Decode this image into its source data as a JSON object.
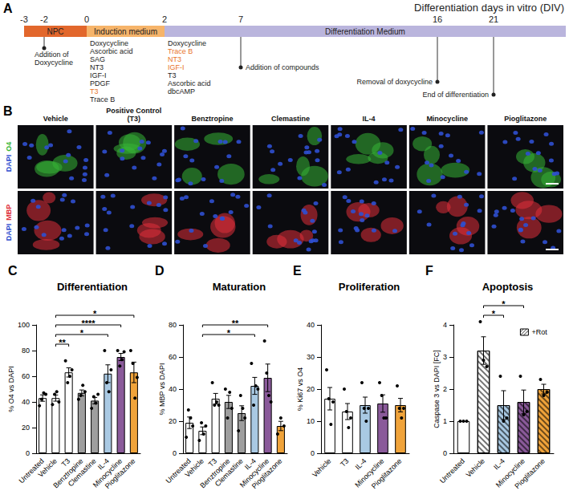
{
  "panel_a": {
    "letter": "A",
    "header": "Differentiation days in vitro (DIV)",
    "ticks": [
      -3,
      -2,
      0,
      2,
      7,
      16,
      21
    ],
    "segments": [
      {
        "label": "NPC",
        "from": -3,
        "color": "#e2672c"
      },
      {
        "label": "Induction medium",
        "from": 0,
        "color": "#f6b46a"
      },
      {
        "label": "Differentiation Medium",
        "from": 2,
        "color": "#bab5dd"
      }
    ],
    "media": [
      {
        "day": 0,
        "items": [
          "Doxycycline",
          "Ascorbic acid",
          "SAG",
          "NT3",
          "IGF-I",
          "PDGF",
          "T3",
          "Trace B"
        ],
        "highlighted": [
          "T3"
        ]
      },
      {
        "day": 2,
        "items": [
          "Doxycycline",
          "Trace B",
          "NT3",
          "IGF-I",
          "T3",
          "Ascorbic acid",
          "dbcAMP"
        ],
        "highlighted": [
          "Trace B",
          "NT3",
          "IGF-I"
        ]
      }
    ],
    "events": [
      {
        "day": -2,
        "text": "Addition of Doxycycline"
      },
      {
        "day": 7,
        "text": "Addition of compounds"
      },
      {
        "day": 16,
        "text": "Removal of doxycycline"
      },
      {
        "day": 21,
        "text": "End of differentiation"
      }
    ]
  },
  "panel_b": {
    "letter": "B",
    "columns": [
      "Vehicle",
      "Positive Control (T3)",
      "Benztropine",
      "Clemastine",
      "IL-4",
      "Minocycline",
      "Pioglitazone"
    ],
    "rows": [
      {
        "stains": [
          "DAPI",
          "O4"
        ],
        "colors": [
          "#2f4fd0",
          "#36b536"
        ]
      },
      {
        "stains": [
          "DAPI",
          "MBP"
        ],
        "colors": [
          "#2f4fd0",
          "#e0303a"
        ]
      }
    ]
  },
  "chart_data": [
    {
      "panel": "C",
      "type": "bar",
      "title": "Differentiation",
      "y_label": "% O4 vs DAPI",
      "categories": [
        "Untreated",
        "Vehicle",
        "T3",
        "Benztropine",
        "Clemastine",
        "IL-4",
        "Minocycline",
        "Pioglitazone"
      ],
      "values": [
        43,
        43,
        63,
        47,
        41,
        62,
        75,
        63
      ],
      "errors": [
        2.5,
        2.4,
        3.6,
        2.3,
        2.5,
        6.9,
        2.8,
        8.0
      ],
      "points": [
        [
          37,
          42,
          47,
          46
        ],
        [
          38,
          46,
          48,
          40
        ],
        [
          72,
          55,
          60,
          65
        ],
        [
          42,
          45,
          53,
          48
        ],
        [
          35,
          44,
          39,
          46
        ],
        [
          80,
          55,
          48,
          65
        ],
        [
          80,
          68,
          73,
          79
        ],
        [
          80,
          70,
          43,
          59
        ]
      ],
      "colors": [
        "#ffffff",
        "#ffffff",
        "#ffffff",
        "#9e9e9e",
        "#9e9e9e",
        "#a9c9e3",
        "#8a5a9a",
        "#f0a33a"
      ],
      "ylim": [
        0,
        100
      ],
      "yticks": [
        0,
        20,
        40,
        60,
        80,
        100
      ],
      "significance": [
        {
          "from": "Vehicle",
          "to": "T3",
          "label": "**"
        },
        {
          "from": "Vehicle",
          "to": "IL-4",
          "label": "*"
        },
        {
          "from": "Vehicle",
          "to": "Minocycline",
          "label": "****"
        },
        {
          "from": "Vehicle",
          "to": "Pioglitazone",
          "label": "*"
        }
      ]
    },
    {
      "panel": "D",
      "type": "bar",
      "title": "Maturation",
      "y_label": "% MBP vs DAPI",
      "categories": [
        "Untreated",
        "Vehicle",
        "T3",
        "Benztropine",
        "Clemastine",
        "IL-4",
        "Minocycline",
        "Pioglitazone"
      ],
      "values": [
        19,
        14,
        34,
        32,
        25,
        42,
        47,
        17
      ],
      "errors": [
        3.6,
        2.4,
        3.3,
        4.1,
        4.6,
        5.3,
        8.6,
        2.9
      ],
      "points": [
        [
          10,
          27,
          22,
          17
        ],
        [
          8,
          19,
          12,
          17
        ],
        [
          44,
          30,
          32,
          30
        ],
        [
          40,
          22,
          38,
          28
        ],
        [
          14,
          36,
          28,
          22
        ],
        [
          56,
          30,
          42,
          40
        ],
        [
          70,
          50,
          36,
          32
        ],
        [
          12,
          22,
          17
        ]
      ],
      "colors": [
        "#ffffff",
        "#ffffff",
        "#ffffff",
        "#9e9e9e",
        "#9e9e9e",
        "#a9c9e3",
        "#8a5a9a",
        "#f0a33a"
      ],
      "ylim": [
        0,
        80
      ],
      "yticks": [
        0,
        20,
        40,
        60,
        80
      ],
      "significance": [
        {
          "from": "Vehicle",
          "to": "IL-4",
          "label": "*"
        },
        {
          "from": "Vehicle",
          "to": "Minocycline",
          "label": "**"
        }
      ]
    },
    {
      "panel": "E",
      "type": "bar",
      "title": "Proliferation",
      "y_label": "% Ki67 vs O4",
      "categories": [
        "Vehicle",
        "T3",
        "IL-4",
        "Minocycline",
        "Pioglitazone"
      ],
      "values": [
        17,
        13,
        15,
        15.5,
        15
      ],
      "errors": [
        3.5,
        2.5,
        2.5,
        2.7,
        2.1
      ],
      "points": [
        [
          26,
          17,
          9,
          16
        ],
        [
          20,
          13,
          8,
          11
        ],
        [
          22,
          14,
          10,
          14
        ],
        [
          22,
          18,
          11,
          11
        ],
        [
          21,
          14,
          11,
          14
        ]
      ],
      "colors": [
        "#ffffff",
        "#ffffff",
        "#a9c9e3",
        "#8a5a9a",
        "#f0a33a"
      ],
      "ylim": [
        0,
        40
      ],
      "yticks": [
        0,
        10,
        20,
        30,
        40
      ],
      "significance": []
    },
    {
      "panel": "F",
      "type": "bar",
      "title": "Apoptosis",
      "y_label": "Caspase 3 vs DAPI [FC]",
      "categories": [
        "Untreated",
        "Vehicle",
        "IL-4",
        "Minocycline",
        "Pioglitazone"
      ],
      "values": [
        1,
        3.2,
        1.5,
        1.6,
        2.0
      ],
      "errors": [
        0,
        0.43,
        0.45,
        0.37,
        0.15
      ],
      "points": [
        [
          1,
          1,
          1
        ],
        [
          4.1,
          2.9,
          2.7
        ],
        [
          2.4,
          1.0,
          1.1
        ],
        [
          2.4,
          1.2,
          1.3
        ],
        [
          2.3,
          1.8,
          1.9
        ]
      ],
      "colors": [
        "#ffffff",
        "#ffffff",
        "#a9c9e3",
        "#8a5a9a",
        "#f0a33a"
      ],
      "hatched": [
        false,
        true,
        true,
        true,
        true
      ],
      "hatch_label": "+Rot",
      "legend": "top-right",
      "ylim": [
        0,
        4
      ],
      "yticks": [
        0,
        1,
        2,
        3,
        4
      ],
      "significance": [
        {
          "from": "Vehicle",
          "to": "IL-4",
          "label": "*"
        },
        {
          "from": "Vehicle",
          "to": "Minocycline",
          "label": "*"
        }
      ]
    }
  ]
}
